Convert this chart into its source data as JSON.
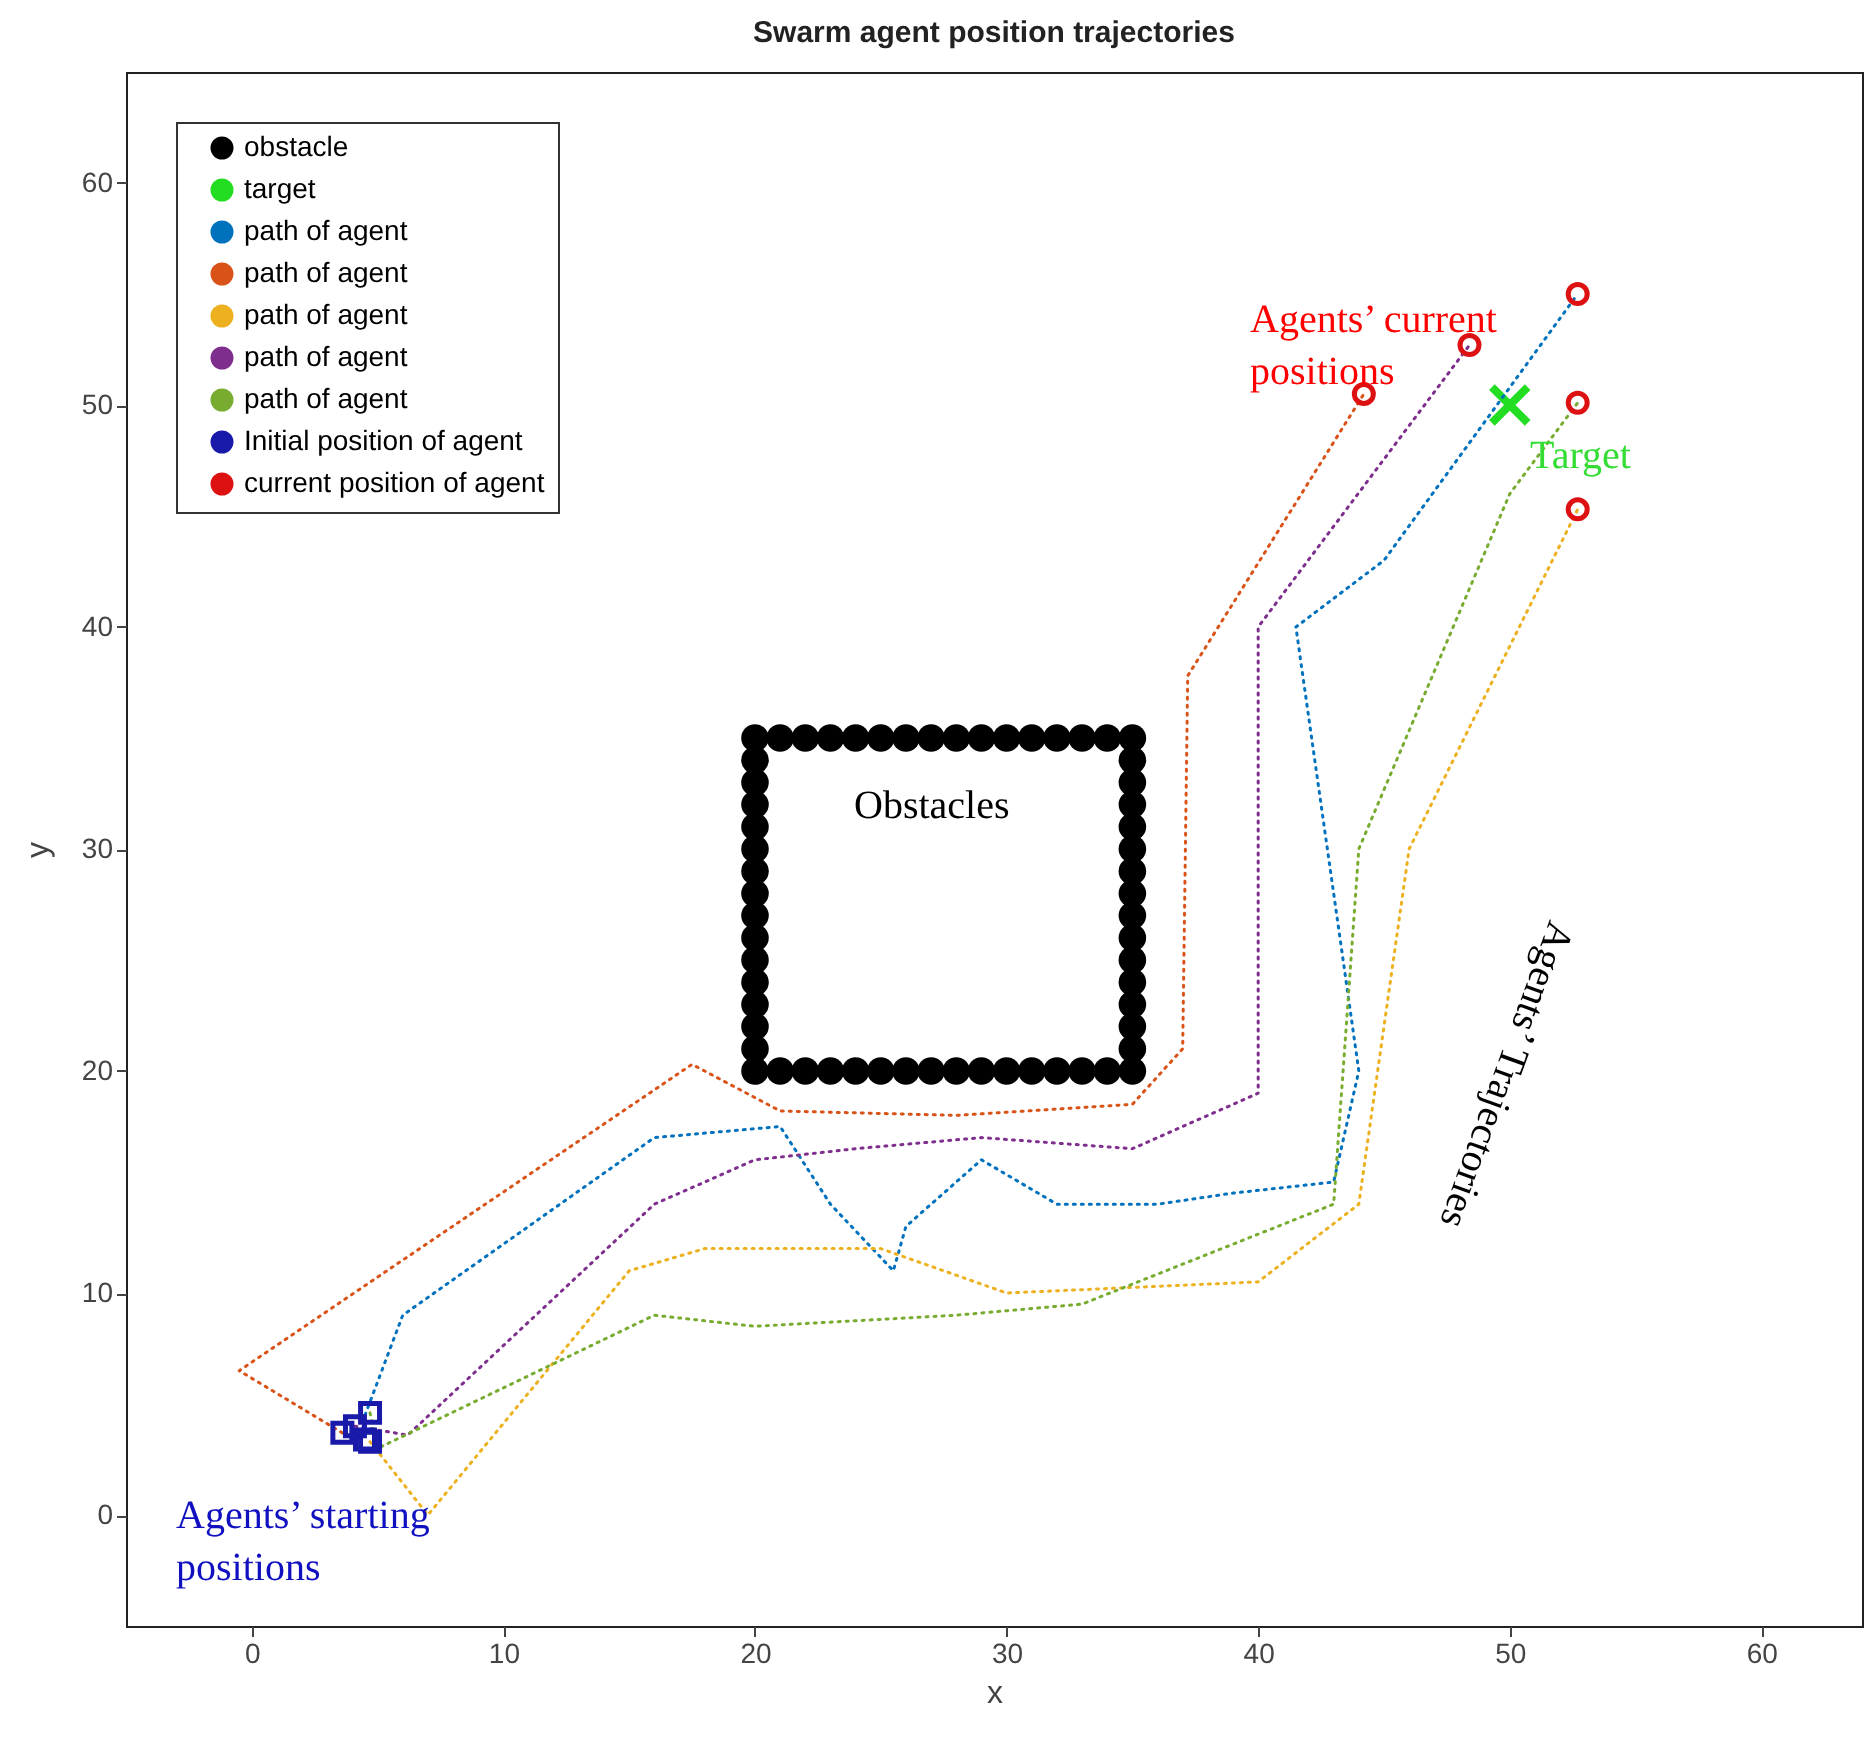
{
  "chart_data": {
    "type": "line",
    "title": "Swarm agent position trajectories",
    "xlabel": "x",
    "ylabel": "y",
    "xlim": [
      -5,
      64
    ],
    "ylim": [
      -5,
      65
    ],
    "xticks": [
      0,
      10,
      20,
      30,
      40,
      50,
      60
    ],
    "yticks": [
      0,
      10,
      20,
      30,
      40,
      50,
      60
    ],
    "grid": false,
    "legend": "top left",
    "series": [
      {
        "name": "obstacle",
        "type": "scatter",
        "marker": "circle",
        "color": "#000000",
        "x": [
          20,
          21,
          22,
          23,
          24,
          25,
          26,
          27,
          28,
          29,
          30,
          31,
          32,
          33,
          34,
          35,
          35,
          35,
          35,
          35,
          35,
          35,
          35,
          35,
          35,
          35,
          35,
          35,
          35,
          35,
          35,
          34,
          33,
          32,
          31,
          30,
          29,
          28,
          27,
          26,
          25,
          24,
          23,
          22,
          21,
          20,
          20,
          20,
          20,
          20,
          20,
          20,
          20,
          20,
          20,
          20,
          20,
          20,
          20,
          20
        ],
        "values": [
          20,
          20,
          20,
          20,
          20,
          20,
          20,
          20,
          20,
          20,
          20,
          20,
          20,
          20,
          20,
          20,
          21,
          22,
          23,
          24,
          25,
          26,
          27,
          28,
          29,
          30,
          31,
          32,
          33,
          34,
          35,
          35,
          35,
          35,
          35,
          35,
          35,
          35,
          35,
          35,
          35,
          35,
          35,
          35,
          35,
          35,
          34,
          33,
          32,
          31,
          30,
          29,
          28,
          27,
          26,
          25,
          24,
          23,
          22,
          21
        ]
      },
      {
        "name": "target",
        "type": "scatter",
        "marker": "cross",
        "color": "#22dd22",
        "x": [
          50
        ],
        "values": [
          50
        ]
      },
      {
        "name": "path of agent",
        "line_style": "dotted",
        "color": "#0072bd",
        "x": [
          4.5,
          6,
          16,
          21,
          23,
          25.5,
          26,
          29,
          32,
          36,
          39,
          43,
          44,
          41.5,
          45,
          52.7
        ],
        "values": [
          4.5,
          9,
          17,
          17.5,
          14,
          11,
          13,
          16,
          14,
          14,
          14.5,
          15,
          20,
          40,
          43,
          55
        ]
      },
      {
        "name": "path of agent",
        "line_style": "dotted",
        "color": "#d95319",
        "x": [
          3.6,
          -0.5,
          17.5,
          21,
          28,
          35,
          37,
          37.2,
          44.2
        ],
        "values": [
          3.7,
          6.5,
          20.3,
          18.2,
          18,
          18.5,
          21,
          37.8,
          50.5
        ]
      },
      {
        "name": "path of agent",
        "line_style": "dotted",
        "color": "#edb120",
        "x": [
          4.7,
          7,
          15,
          18,
          25,
          30,
          40,
          44,
          46,
          52.7
        ],
        "values": [
          3.3,
          0,
          11,
          12,
          12,
          10,
          10.5,
          14,
          30,
          45.3
        ]
      },
      {
        "name": "path of agent",
        "line_style": "dotted",
        "color": "#7e2f8e",
        "x": [
          4.1,
          6.2,
          16,
          20,
          24,
          29,
          35,
          40,
          40,
          48.4
        ],
        "values": [
          4,
          3.6,
          14,
          16,
          16.5,
          17,
          16.5,
          19,
          40,
          52.7
        ]
      },
      {
        "name": "path of agent",
        "line_style": "dotted",
        "color": "#77ac30",
        "x": [
          4.7,
          5,
          16,
          20,
          28,
          33,
          43,
          44,
          50,
          52.7
        ],
        "values": [
          4.6,
          3,
          9,
          8.5,
          9,
          9.5,
          14,
          30,
          46,
          50.1
        ]
      },
      {
        "name": "Initial position of agent",
        "type": "scatter",
        "marker": "square",
        "color": "#1a1aaa",
        "x": [
          3.6,
          4.1,
          4.7,
          4.7,
          4.5
        ],
        "values": [
          3.7,
          4,
          4.6,
          3.3,
          3.4
        ]
      },
      {
        "name": "current position of agent",
        "type": "scatter",
        "marker": "circle",
        "color": "#dd1111",
        "x": [
          52.7,
          44.2,
          52.7,
          48.4,
          52.7
        ],
        "values": [
          55,
          50.5,
          45.3,
          52.7,
          50.1
        ]
      }
    ],
    "annotations": [
      "Agents’ current positions",
      "Target",
      "Obstacles",
      "Agents’ Trajectories",
      "Agents’ starting positions"
    ]
  }
}
